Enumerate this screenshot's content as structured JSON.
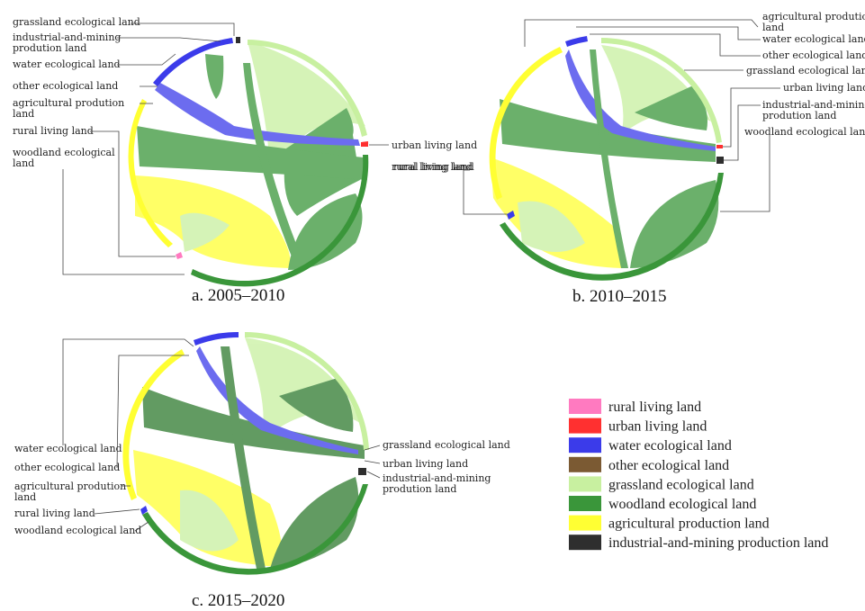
{
  "colors": {
    "rural": "#ff7ac0",
    "urban": "#ff3030",
    "water": "#3b3bea",
    "other": "#7b5a33",
    "grassland": "#c8f0a0",
    "woodland": "#3a963a",
    "agricultural": "#ffff33",
    "industrial": "#2e2e2e"
  },
  "panels": [
    {
      "caption": "a. 2005–2010",
      "labels": [
        "grassland ecological land",
        "industrial-and-mining",
        "prodution land",
        "water ecological land",
        "other ecological land",
        "agricultural prodution",
        "land",
        "rural living land",
        "woodland ecological",
        "land",
        "urban living land",
        "rural living land"
      ]
    },
    {
      "caption": "b. 2010–2015",
      "labels": [
        "agricultural prodution",
        "land",
        "water ecological land",
        "other ecological land",
        "grassland ecological land",
        "urban living land",
        "industrial-and-mining",
        "prodution land",
        "woodland ecological land",
        "rural living land"
      ]
    },
    {
      "caption": "c. 2015–2020",
      "labels": [
        "water ecological land",
        "other ecological land",
        "agricultural prodution",
        "land",
        "rural living land",
        "woodland ecological land",
        "grassland ecological land",
        "urban living land",
        "industrial-and-mining",
        "prodution land"
      ]
    }
  ],
  "legend": [
    {
      "label": "rural living land",
      "color": "#ff7ac0"
    },
    {
      "label": "urban living land",
      "color": "#ff3030"
    },
    {
      "label": "water ecological land",
      "color": "#3b3bea"
    },
    {
      "label": "other ecological land",
      "color": "#7b5a33"
    },
    {
      "label": "grassland ecological land",
      "color": "#c8f0a0"
    },
    {
      "label": "woodland ecological land",
      "color": "#3a963a"
    },
    {
      "label": "agricultural production land",
      "color": "#ffff33"
    },
    {
      "label": "industrial-and-mining production land",
      "color": "#2e2e2e"
    }
  ]
}
